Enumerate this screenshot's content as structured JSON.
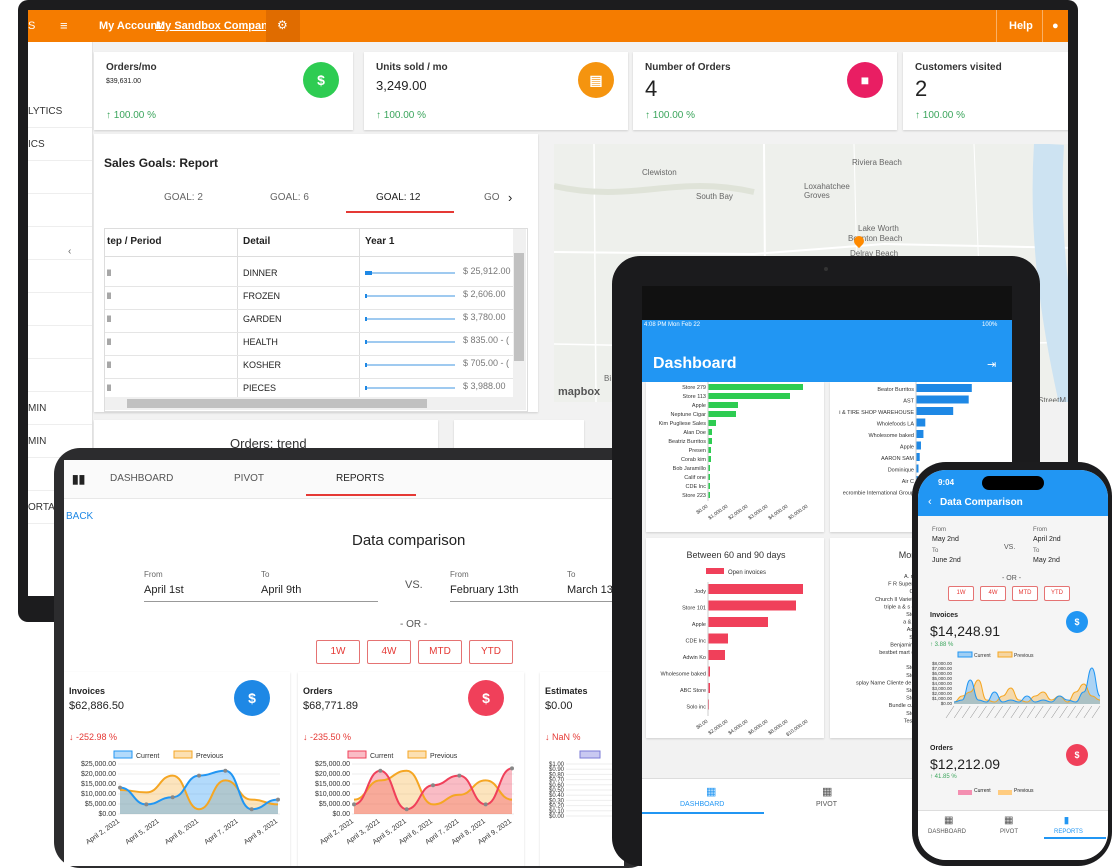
{
  "monitor": {
    "topbar": {
      "menu_label": "My Account:",
      "company_label": "My Sandbox Company",
      "help_label": "Help"
    },
    "sidebar": {
      "items": [
        "LYTICS",
        "ICS",
        "",
        "",
        "",
        "",
        "",
        "",
        "",
        "MIN",
        "MIN",
        "",
        "ORTAL"
      ]
    },
    "kpis": [
      {
        "title": "Orders/mo",
        "value": "$39,631.00",
        "change": "100.00 %",
        "icon": "dollar-icon",
        "color": "#2ecc52"
      },
      {
        "title": "Units sold / mo",
        "value": "3,249.00",
        "change": "100.00 %",
        "icon": "box-icon",
        "color": "#f5940f"
      },
      {
        "title": "Number of Orders",
        "value": "4",
        "change": "100.00 %",
        "icon": "document-icon",
        "color": "#e91e63"
      },
      {
        "title": "Customers visited",
        "value": "2",
        "change": "100.00 %",
        "icon": "",
        "color": ""
      }
    ],
    "goals": {
      "title": "Sales Goals: Report",
      "tabs": [
        "GOAL: 2",
        "GOAL: 6",
        "GOAL: 12",
        "GO"
      ],
      "headers": [
        "tep / Period",
        "Detail",
        "Year 1"
      ],
      "rows": [
        {
          "period": "ll",
          "detail": "DINNER",
          "value": "$ 25,912.00",
          "pct": 0.08
        },
        {
          "period": "ll",
          "detail": "FROZEN",
          "value": "$ 2,606.00",
          "pct": 0.01
        },
        {
          "period": "ll",
          "detail": "GARDEN",
          "value": "$ 3,780.00",
          "pct": 0.01
        },
        {
          "period": "ll",
          "detail": "HEALTH",
          "value": "$ 835.00 - (",
          "pct": 0.005
        },
        {
          "period": "ll",
          "detail": "KOSHER",
          "value": "$ 705.00 - (",
          "pct": 0.005
        },
        {
          "period": "ll",
          "detail": "PIECES",
          "value": "$ 3,988.00",
          "pct": 0.01
        }
      ]
    },
    "map": {
      "places": [
        "Riviera Beach",
        "Clewiston",
        "South Bay",
        "Loxahatchee Groves",
        "Lake Worth",
        "Boynton Beach",
        "Delray Beach",
        "Bi",
        "StreetM"
      ],
      "brand": "mapbox"
    },
    "trend_title": "Orders: trend"
  },
  "tablet": {
    "tabs": [
      "DASHBOARD",
      "PIVOT",
      "REPORTS"
    ],
    "back": "BACK",
    "title": "Data comparison",
    "from_label": "From",
    "to_label": "To",
    "range1": {
      "from": "April 1st",
      "to": "April 9th"
    },
    "vs": "VS.",
    "range2": {
      "from": "February 13th",
      "to": "March 13"
    },
    "or": "- OR -",
    "quick": [
      "1W",
      "4W",
      "MTD",
      "YTD"
    ],
    "cards": [
      {
        "title": "Invoices",
        "value": "$62,886.50",
        "change": "-252.98 %",
        "icon_color": "#1e88e5"
      },
      {
        "title": "Orders",
        "value": "$68,771.89",
        "change": "-235.50 %",
        "icon_color": "#f0405a"
      },
      {
        "title": "Estimates",
        "value": "$0.00",
        "change": "NaN %",
        "icon_color": ""
      }
    ],
    "legend": [
      "Current",
      "Previous"
    ],
    "y_ticks": [
      "$25,000.00",
      "$20,000.00",
      "$15,000.00",
      "$10,000.00",
      "$5,000.00",
      "$0.00"
    ],
    "y_ticks_small": [
      "$1.00",
      "$0.90",
      "$0.80",
      "$0.70",
      "$0.60",
      "$0.50",
      "$0.40",
      "$0.30",
      "$0.20",
      "$0.10",
      "$0.00"
    ],
    "x_ticks": [
      "April 2, 2021",
      "April 5, 2021",
      "April 6, 2021",
      "April 7, 2021",
      "April 9, 2021"
    ],
    "x_ticks2": [
      "April 2, 2021",
      "April 3, 2021",
      "April 5, 2021",
      "April 6, 2021",
      "April 7, 2021",
      "April 8, 2021",
      "April 9, 2021"
    ]
  },
  "ipad": {
    "status_time": "4:08 PM  Mon Feb 22",
    "status_right": "100%",
    "title": "Dashboard",
    "chart1_labels": [
      "Store 279",
      "Store 113",
      "Apple",
      "Neptune Cigar",
      "Kim Pugliese Sales",
      "Alan Doe",
      "Beatriz Burritos",
      "Presen",
      "Corab kim",
      "Bob Jaramillo",
      "Calif one",
      "CDE Inc",
      "Store 223"
    ],
    "chart1_values": [
      0.95,
      0.82,
      0.3,
      0.28,
      0.08,
      0.04,
      0.04,
      0.03,
      0.03,
      0.02,
      0.02,
      0.02,
      0.02
    ],
    "chart1_x": [
      "$0.00",
      "$1,000.00",
      "$2,000.00",
      "$3,000.00",
      "$4,000.00",
      "$5,000.00"
    ],
    "chart2_labels": [
      "Beator Burritos",
      "AST",
      "i & TIRE SHOP WAREHOUSE",
      "Wholefoods LA",
      "Wholesome baked",
      "Apple",
      "AARON SAM",
      "Dominique",
      "Air C",
      "ecrombie International Group"
    ],
    "chart2_values": [
      0.9,
      0.85,
      0.6,
      0.15,
      0.12,
      0.08,
      0.06,
      0.04,
      0.03,
      0.02
    ],
    "chart3_title": "Between 60 and 90 days",
    "chart3_legend": "Open invoices",
    "chart3_labels": [
      "Jody",
      "Store 101",
      "Apple",
      "CDE Inc",
      "Adwin Ko",
      "Wholesome baked",
      "ABC Store",
      "Solo inc"
    ],
    "chart3_values": [
      0.95,
      0.88,
      0.6,
      0.2,
      0.17,
      0.02,
      0.02,
      0.01
    ],
    "chart3_x": [
      "$0.00",
      "$2,000.00",
      "$4,000.00",
      "$6,000.00",
      "$8,000.00",
      "$10,000.00"
    ],
    "chart4_title": "More th",
    "chart4_labels": [
      "A. mckenn",
      "F R Supermarket",
      "CDE Inc",
      "Church II Variety Shop",
      "triple a & s grocery",
      "Store 223",
      "a & S shop",
      "Adwin Ko",
      "Store 41",
      "Benjamin Yeung",
      "bestbet mart (thinner",
      "Apple",
      "Store 528",
      "Store 223",
      "splay Name Cliente de prueba",
      "Store 151",
      "Store 330",
      "Bundle customer",
      "Store 101",
      "Test online"
    ],
    "nav": [
      "DASHBOARD",
      "PIVOT"
    ]
  },
  "phone": {
    "time": "9:04",
    "title": "Data Comparison",
    "from_label": "From",
    "to_label": "To",
    "range1": {
      "from": "May 2nd",
      "to": "June 2nd"
    },
    "vs": "VS.",
    "range2": {
      "from": "April 2nd",
      "to": "May 2nd"
    },
    "or": "- OR -",
    "quick": [
      "1W",
      "4W",
      "MTD",
      "YTD"
    ],
    "invoices": {
      "title": "Invoices",
      "value": "$14,248.91",
      "change": "3.88 %"
    },
    "orders": {
      "title": "Orders",
      "value": "$12,212.09",
      "change": "41.85 %"
    },
    "legend": [
      "Current",
      "Previous"
    ],
    "y_ticks": [
      "$8,000.00",
      "$7,000.00",
      "$6,000.00",
      "$5,000.00",
      "$4,000.00",
      "$3,000.00",
      "$2,000.00",
      "$1,000.00",
      "$0.00"
    ],
    "nav": [
      "DASHBOARD",
      "PIVOT",
      "REPORTS"
    ]
  },
  "colors": {
    "orange": "#f57c00",
    "blue": "#2196f3",
    "red": "#f0405a",
    "green": "#2ecc52"
  }
}
